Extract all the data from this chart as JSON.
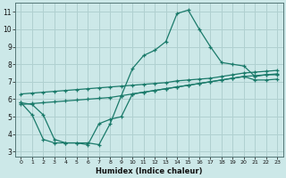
{
  "xlabel": "Humidex (Indice chaleur)",
  "bg_color": "#cce8e8",
  "grid_color": "#b0d0d0",
  "line_color": "#1a7a6a",
  "xlim": [
    -0.5,
    23.5
  ],
  "ylim": [
    2.7,
    11.5
  ],
  "xticks": [
    0,
    1,
    2,
    3,
    4,
    5,
    6,
    7,
    8,
    9,
    10,
    11,
    12,
    13,
    14,
    15,
    16,
    17,
    18,
    19,
    20,
    21,
    22,
    23
  ],
  "yticks": [
    3,
    4,
    5,
    6,
    7,
    8,
    9,
    10,
    11
  ],
  "series1_x": [
    0,
    1,
    2,
    3,
    4,
    5,
    6,
    7,
    8,
    9,
    10,
    11,
    12,
    13,
    14,
    15,
    16,
    17,
    18,
    19,
    20,
    21,
    22,
    23
  ],
  "series1_y": [
    5.8,
    5.7,
    5.1,
    3.7,
    3.5,
    3.5,
    3.5,
    3.4,
    4.6,
    6.2,
    7.75,
    8.5,
    8.8,
    9.3,
    10.9,
    11.1,
    10.0,
    9.0,
    8.1,
    8.0,
    7.9,
    7.3,
    7.4,
    7.4
  ],
  "series2_x": [
    0,
    1,
    2,
    3,
    4,
    5,
    6,
    7,
    8,
    9,
    10,
    11,
    12,
    13,
    14,
    15,
    16,
    17,
    18,
    19,
    20,
    21,
    22,
    23
  ],
  "series2_y": [
    6.3,
    6.35,
    6.4,
    6.45,
    6.5,
    6.55,
    6.6,
    6.65,
    6.7,
    6.75,
    6.8,
    6.85,
    6.9,
    6.95,
    7.05,
    7.1,
    7.15,
    7.2,
    7.3,
    7.4,
    7.5,
    7.55,
    7.6,
    7.65
  ],
  "series3_x": [
    0,
    1,
    2,
    3,
    4,
    5,
    6,
    7,
    8,
    9,
    10,
    11,
    12,
    13,
    14,
    15,
    16,
    17,
    18,
    19,
    20,
    21,
    22,
    23
  ],
  "series3_y": [
    5.7,
    5.75,
    5.8,
    5.85,
    5.9,
    5.95,
    6.0,
    6.05,
    6.1,
    6.2,
    6.3,
    6.4,
    6.5,
    6.6,
    6.7,
    6.8,
    6.9,
    7.0,
    7.1,
    7.2,
    7.3,
    7.35,
    7.4,
    7.45
  ],
  "series4_x": [
    0,
    1,
    2,
    3,
    4,
    5,
    6,
    7,
    8,
    9,
    10,
    11,
    12,
    13,
    14,
    15,
    16,
    17,
    18,
    19,
    20,
    21,
    22,
    23
  ],
  "series4_y": [
    5.8,
    5.1,
    3.7,
    3.5,
    3.5,
    3.5,
    3.4,
    4.6,
    4.85,
    5.0,
    6.3,
    6.4,
    6.5,
    6.6,
    6.7,
    6.8,
    6.9,
    7.0,
    7.1,
    7.2,
    7.3,
    7.1,
    7.1,
    7.15
  ]
}
